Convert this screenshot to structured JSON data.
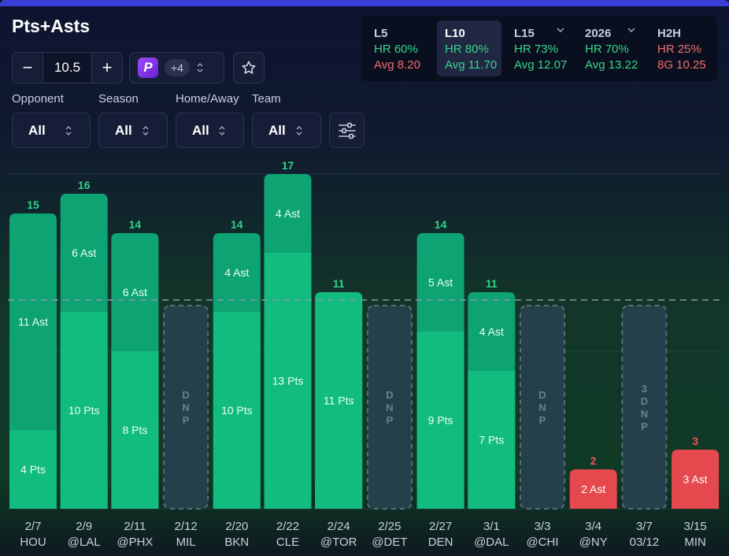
{
  "title": "Pts+Asts",
  "line": {
    "minus": "−",
    "value": "10.5",
    "plus": "+"
  },
  "book": {
    "logo_letter": "P",
    "count": "+4"
  },
  "filters": [
    {
      "label": "Opponent",
      "value": "All"
    },
    {
      "label": "Season",
      "value": "All"
    },
    {
      "label": "Home/Away",
      "value": "All"
    },
    {
      "label": "Team",
      "value": "All"
    }
  ],
  "stats": [
    {
      "label": "L5",
      "hr": "HR 60%",
      "avg": "Avg 8.20",
      "hr_color": "green",
      "avg_color": "red",
      "dropdown": false,
      "selected": false
    },
    {
      "label": "L10",
      "hr": "HR 80%",
      "avg": "Avg 11.70",
      "hr_color": "green",
      "avg_color": "green",
      "dropdown": false,
      "selected": true
    },
    {
      "label": "L15",
      "hr": "HR 73%",
      "avg": "Avg 12.07",
      "hr_color": "green",
      "avg_color": "green",
      "dropdown": true,
      "selected": false
    },
    {
      "label": "2026",
      "hr": "HR 70%",
      "avg": "Avg 13.22",
      "hr_color": "green",
      "avg_color": "green",
      "dropdown": true,
      "selected": false
    },
    {
      "label": "H2H",
      "hr": "HR 25%",
      "avg": "8G 10.25",
      "hr_color": "red",
      "avg_color": "red",
      "dropdown": false,
      "selected": false
    }
  ],
  "colors": {
    "pts": "#12bb7e",
    "ast": "#0ea372",
    "miss": "#e5484d",
    "hit_label": "#2fd48a",
    "miss_label": "#f05454",
    "dnp": "#24404a"
  },
  "chart_data": {
    "type": "bar",
    "title": "Pts+Asts",
    "line_value": 10.5,
    "ylim": [
      0,
      18
    ],
    "games": [
      {
        "date": "2/7",
        "opp": "HOU",
        "total": 15,
        "pts": 4,
        "ast": 11,
        "dnp": false
      },
      {
        "date": "2/9",
        "opp": "@LAL",
        "total": 16,
        "pts": 10,
        "ast": 6,
        "dnp": false
      },
      {
        "date": "2/11",
        "opp": "@PHX",
        "total": 14,
        "pts": 8,
        "ast": 6,
        "dnp": false
      },
      {
        "date": "2/12",
        "opp": "MIL",
        "dnp": true,
        "dnp_text": "DNP"
      },
      {
        "date": "2/20",
        "opp": "BKN",
        "total": 14,
        "pts": 10,
        "ast": 4,
        "dnp": false
      },
      {
        "date": "2/22",
        "opp": "CLE",
        "total": 17,
        "pts": 13,
        "ast": 4,
        "dnp": false
      },
      {
        "date": "2/24",
        "opp": "@TOR",
        "total": 11,
        "pts": 11,
        "ast": 0,
        "dnp": false
      },
      {
        "date": "2/25",
        "opp": "@DET",
        "dnp": true,
        "dnp_text": "DNP"
      },
      {
        "date": "2/27",
        "opp": "DEN",
        "total": 14,
        "pts": 9,
        "ast": 5,
        "dnp": false
      },
      {
        "date": "3/1",
        "opp": "@DAL",
        "total": 11,
        "pts": 7,
        "ast": 4,
        "dnp": false
      },
      {
        "date": "3/3",
        "opp": "@CHI",
        "dnp": true,
        "dnp_text": "DNP"
      },
      {
        "date": "3/4",
        "opp": "@NY",
        "total": 2,
        "pts": 0,
        "ast": 2,
        "dnp": false
      },
      {
        "date": "3/7",
        "opp": "03/12",
        "dnp": true,
        "dnp_text": "3DNP"
      },
      {
        "date": "3/15",
        "opp": "MIN",
        "total": 3,
        "pts": 0,
        "ast": 3,
        "dnp": false
      }
    ]
  }
}
